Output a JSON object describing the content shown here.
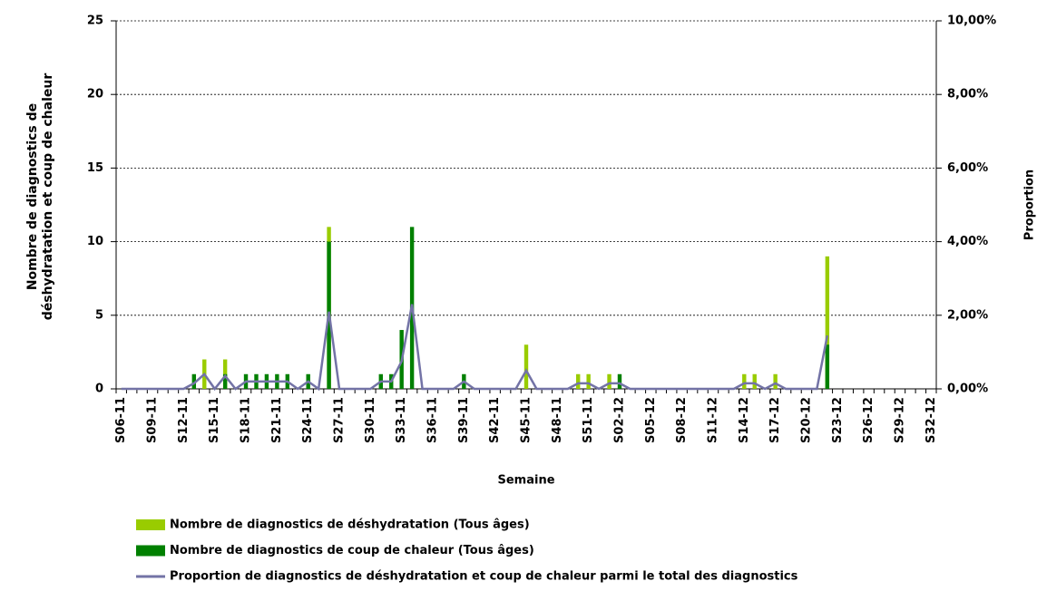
{
  "chart_data": {
    "type": "bar",
    "y_label": "Nombre de diagnostics de déshydratation et coup de chaleur",
    "y2_label": "Proportion",
    "x_label": "Semaine",
    "categories": [
      "S06-11",
      null,
      null,
      "S09-11",
      null,
      null,
      "S12-11",
      null,
      null,
      "S15-11",
      null,
      null,
      "S18-11",
      null,
      null,
      "S21-11",
      null,
      null,
      "S24-11",
      null,
      null,
      "S27-11",
      null,
      null,
      "S30-11",
      null,
      null,
      "S33-11",
      null,
      null,
      "S36-11",
      null,
      null,
      "S39-11",
      null,
      null,
      "S42-11",
      null,
      null,
      "S45-11",
      null,
      null,
      "S48-11",
      null,
      null,
      "S51-11",
      null,
      null,
      "S02-12",
      null,
      null,
      "S05-12",
      null,
      null,
      "S08-12",
      null,
      null,
      "S11-12",
      null,
      null,
      "S14-12",
      null,
      null,
      "S17-12",
      null,
      null,
      "S20-12",
      null,
      null,
      "S23-12",
      null,
      null,
      "S26-12",
      null,
      null,
      "S29-12",
      null,
      null,
      "S32-12"
    ],
    "series": [
      {
        "name": "Nombre de diagnostics de déshydratation (Tous âges)",
        "color": "#99cc00",
        "values": [
          0,
          0,
          0,
          0,
          0,
          0,
          0,
          0,
          2,
          0,
          2,
          0,
          0,
          0,
          0,
          0,
          0,
          0,
          0,
          0,
          11,
          0,
          0,
          0,
          0,
          0,
          0,
          0,
          0,
          0,
          0,
          0,
          0,
          0,
          0,
          0,
          0,
          0,
          0,
          3,
          0,
          0,
          0,
          0,
          1,
          1,
          0,
          1,
          0,
          0,
          0,
          0,
          0,
          0,
          0,
          0,
          0,
          0,
          0,
          0,
          1,
          1,
          0,
          1,
          0,
          0,
          0,
          0,
          9,
          null,
          null,
          null,
          null,
          null,
          null,
          null,
          null,
          null,
          null
        ]
      },
      {
        "name": "Nombre de diagnostics de coup de chaleur (Tous âges)",
        "color": "#008000",
        "values": [
          0,
          0,
          0,
          0,
          0,
          0,
          0,
          1,
          0,
          0,
          1,
          0,
          1,
          1,
          1,
          1,
          1,
          0,
          1,
          0,
          10,
          0,
          0,
          0,
          0,
          1,
          1,
          4,
          11,
          0,
          0,
          0,
          0,
          1,
          0,
          0,
          0,
          0,
          0,
          0,
          0,
          0,
          0,
          0,
          0,
          0,
          0,
          0,
          1,
          0,
          0,
          0,
          0,
          0,
          0,
          0,
          0,
          0,
          0,
          0,
          0,
          0,
          0,
          0,
          0,
          0,
          0,
          0,
          3,
          null,
          null,
          null,
          null,
          null,
          null,
          null,
          null,
          null,
          null
        ]
      },
      {
        "name": "Proportion de diagnostics de déshydratation et coup de chaleur parmi le total des diagnostics",
        "color": "#7373a6",
        "axis": "y2",
        "values": [
          0,
          0,
          0,
          0,
          0,
          0,
          0,
          0.15,
          0.4,
          0,
          0.35,
          0,
          0.2,
          0.2,
          0.2,
          0.2,
          0.2,
          0,
          0.2,
          0,
          2.1,
          0,
          0,
          0,
          0,
          0.2,
          0.2,
          0.75,
          2.3,
          0,
          0,
          0,
          0,
          0.2,
          0,
          0,
          0,
          0,
          0,
          0.5,
          0,
          0,
          0,
          0,
          0.15,
          0.15,
          0,
          0.15,
          0.15,
          0,
          0,
          0,
          0,
          0,
          0,
          0,
          0,
          0,
          0,
          0,
          0.15,
          0.15,
          0,
          0.15,
          0,
          0,
          0,
          0,
          1.45,
          null,
          null,
          null,
          null,
          null,
          null,
          null,
          null,
          null,
          null
        ]
      }
    ],
    "ylim": [
      0,
      25
    ],
    "yticks": [
      0,
      5,
      10,
      15,
      20,
      25
    ],
    "y2lim": [
      0,
      10
    ],
    "y2ticks": [
      {
        "value": 0,
        "label": "0,00%"
      },
      {
        "value": 2,
        "label": "2,00%"
      },
      {
        "value": 4,
        "label": "4,00%"
      },
      {
        "value": 6,
        "label": "6,00%"
      },
      {
        "value": 8,
        "label": "8,00%"
      },
      {
        "value": 10,
        "label": "10,00%"
      }
    ],
    "grid": true
  }
}
